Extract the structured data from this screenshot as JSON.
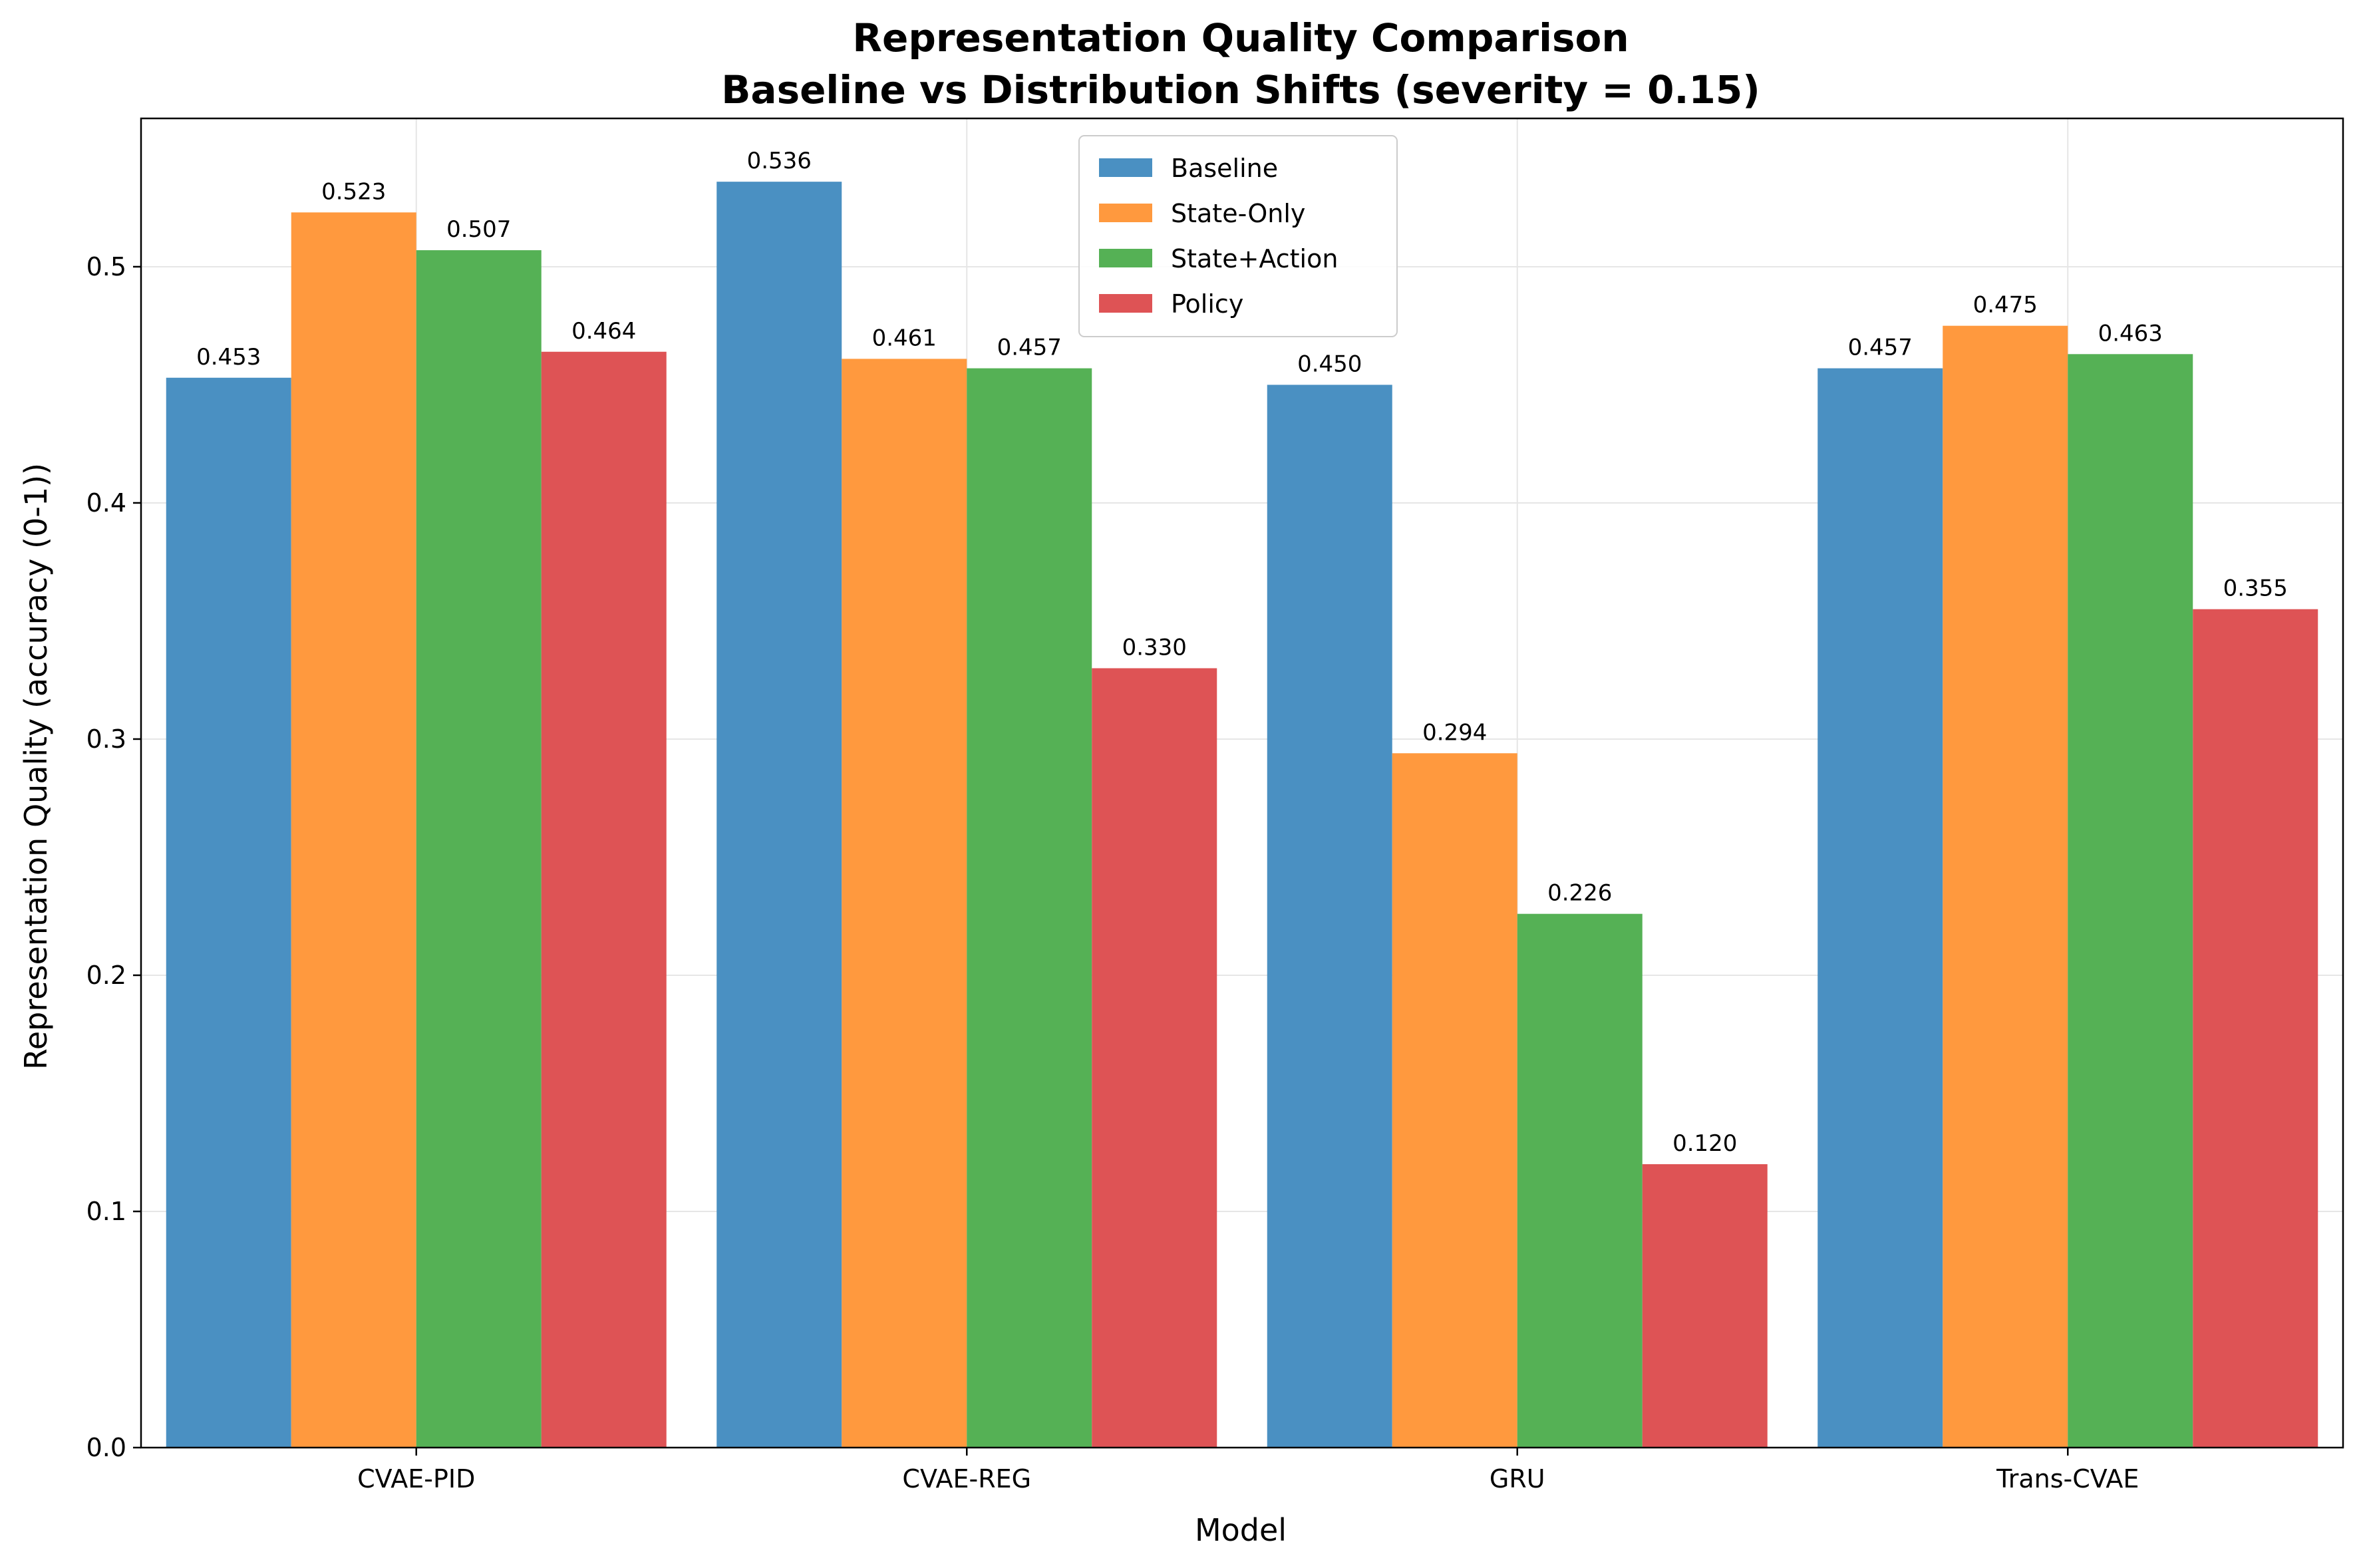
{
  "chart_data": {
    "type": "bar",
    "title": [
      "Representation Quality Comparison",
      "Baseline vs Distribution Shifts (severity = 0.15)"
    ],
    "xlabel": "Model",
    "ylabel": "Representation Quality (accuracy (0-1))",
    "categories": [
      "CVAE-PID",
      "CVAE-REG",
      "GRU",
      "Trans-CVAE"
    ],
    "series": [
      {
        "name": "Baseline",
        "color": "#4a90c2",
        "values": [
          0.453,
          0.536,
          0.45,
          0.457
        ],
        "labels": [
          "0.453",
          "0.536",
          "0.450",
          "0.457"
        ]
      },
      {
        "name": "State-Only",
        "color": "#ff993e",
        "values": [
          0.523,
          0.461,
          0.294,
          0.475
        ],
        "labels": [
          "0.523",
          "0.461",
          "0.294",
          "0.475"
        ]
      },
      {
        "name": "State+Action",
        "color": "#55b155",
        "values": [
          0.507,
          0.457,
          0.226,
          0.463
        ],
        "labels": [
          "0.507",
          "0.457",
          "0.226",
          "0.463"
        ]
      },
      {
        "name": "Policy",
        "color": "#de5355",
        "values": [
          0.464,
          0.33,
          0.12,
          0.355
        ],
        "labels": [
          "0.464",
          "0.330",
          "0.120",
          "0.355"
        ]
      }
    ],
    "ylim": [
      0,
      0.5628
    ],
    "yticks": [
      0.0,
      0.1,
      0.2,
      0.3,
      0.4,
      0.5
    ],
    "ytick_labels": [
      "0.0",
      "0.1",
      "0.2",
      "0.3",
      "0.4",
      "0.5"
    ],
    "grid": true,
    "legend_position": "top-center"
  }
}
